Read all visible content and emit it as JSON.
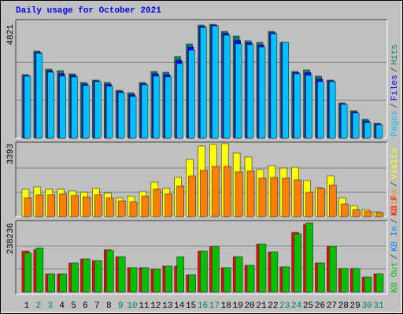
{
  "legend_separator": "/",
  "chart_data": [
    {
      "type": "bar",
      "title": "Daily usage for October 2021",
      "ylim": [
        0,
        4821
      ],
      "yticks": [
        4821
      ],
      "series": [
        {
          "name": "Hits",
          "color": "#00805c",
          "values": [
            2693,
            3691,
            2926,
            2859,
            2726,
            2360,
            2460,
            2360,
            2028,
            1928,
            2360,
            2826,
            2793,
            3458,
            3990,
            4788,
            4821,
            4522,
            4322,
            4123,
            4056,
            4522,
            4056,
            2826,
            2893,
            2627,
            2460,
            1496,
            1164,
            798,
            632
          ]
        },
        {
          "name": "Files",
          "color": "#0000ff",
          "values": [
            2660,
            3640,
            2860,
            2740,
            2660,
            2290,
            2430,
            2280,
            1980,
            1850,
            2310,
            2730,
            2690,
            3300,
            3860,
            4740,
            4790,
            4440,
            4150,
            4040,
            3950,
            4470,
            4060,
            2780,
            2780,
            2510,
            2430,
            1460,
            1110,
            730,
            600
          ]
        },
        {
          "name": "Pages",
          "color": "#00c0ff",
          "values": [
            2627,
            3591,
            2793,
            2627,
            2593,
            2228,
            2394,
            2195,
            1928,
            1762,
            2261,
            2627,
            2593,
            3159,
            3724,
            4688,
            4755,
            4356,
            3990,
            3957,
            3857,
            4422,
            4056,
            2726,
            2660,
            2394,
            2394,
            1430,
            1064,
            665,
            565
          ]
        }
      ]
    },
    {
      "type": "bar",
      "ylim": [
        0,
        3393
      ],
      "yticks": [
        3393
      ],
      "series": [
        {
          "name": "Visits",
          "color": "#ffff00",
          "values": [
            1277,
            1386,
            1277,
            1277,
            1204,
            1131,
            1313,
            1095,
            876,
            949,
            1167,
            1605,
            1313,
            1824,
            2663,
            3284,
            3357,
            3393,
            2955,
            2773,
            2189,
            2371,
            2262,
            2298,
            1678,
            1350,
            1897,
            876,
            511,
            328,
            219
          ]
        },
        {
          "name": "Sites",
          "color": "#ff8000",
          "values": [
            876,
            1022,
            1022,
            1058,
            985,
            912,
            1022,
            876,
            730,
            693,
            949,
            1277,
            1058,
            1423,
            1897,
            2153,
            2335,
            2335,
            2080,
            2116,
            1788,
            1824,
            1788,
            1715,
            1131,
            1313,
            1459,
            584,
            328,
            255,
            182
          ]
        }
      ]
    },
    {
      "type": "bar",
      "ylim": [
        0,
        238236
      ],
      "yticks": [
        238236
      ],
      "categories": [
        "1",
        "2",
        "3",
        "4",
        "5",
        "6",
        "7",
        "8",
        "9",
        "10",
        "11",
        "12",
        "13",
        "14",
        "15",
        "16",
        "17",
        "18",
        "19",
        "20",
        "21",
        "22",
        "23",
        "24",
        "25",
        "26",
        "27",
        "28",
        "29",
        "30",
        "31"
      ],
      "category_colors": [
        "#000000",
        "#00805c",
        "#00805c",
        "#000000",
        "#000000",
        "#000000",
        "#000000",
        "#000000",
        "#00805c",
        "#00805c",
        "#000000",
        "#000000",
        "#000000",
        "#000000",
        "#000000",
        "#00805c",
        "#00805c",
        "#000000",
        "#000000",
        "#000000",
        "#000000",
        "#000000",
        "#00805c",
        "#00805c",
        "#000000",
        "#000000",
        "#000000",
        "#000000",
        "#000000",
        "#00805c",
        "#00805c"
      ],
      "series": [
        {
          "name": "KB F",
          "color": "#ff0000",
          "values": [
            140774,
            146189,
            62266,
            62266,
            100166,
            113702,
            108288,
            146189,
            121824,
            83923,
            83923,
            78509,
            89338,
            89338,
            59558,
            140774,
            157018,
            83923,
            121824,
            92045,
            165139,
            138067,
            86630,
            205747,
            232819,
            100166,
            157018,
            81216,
            81216,
            51437,
            62266
          ]
        },
        {
          "name": "KB In",
          "color": "#0080ff",
          "values": [
            0,
            0,
            0,
            0,
            0,
            0,
            0,
            0,
            0,
            0,
            0,
            0,
            0,
            0,
            0,
            0,
            0,
            0,
            0,
            0,
            0,
            0,
            0,
            0,
            0,
            0,
            0,
            0,
            0,
            0,
            0
          ]
        },
        {
          "name": "KB Out",
          "color": "#00c000",
          "values": [
            135360,
            151603,
            62266,
            62266,
            100166,
            113702,
            108288,
            143482,
            121824,
            83923,
            83923,
            78509,
            89338,
            121824,
            59558,
            140774,
            157018,
            83923,
            121824,
            92045,
            165139,
            138067,
            86630,
            200333,
            238236,
            100166,
            157018,
            81216,
            81216,
            51437,
            62266
          ]
        }
      ]
    }
  ]
}
